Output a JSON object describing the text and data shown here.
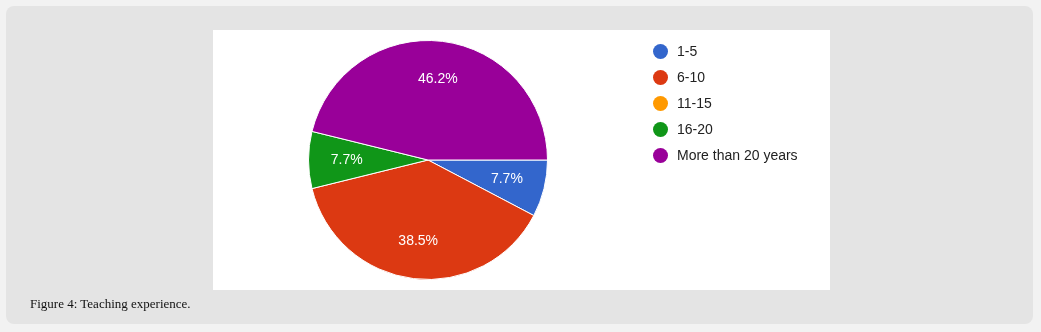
{
  "chart_data": {
    "type": "pie",
    "categories": [
      "1-5",
      "6-10",
      "11-15",
      "16-20",
      "More than 20 years"
    ],
    "values": [
      7.7,
      38.5,
      0,
      7.7,
      46.2
    ],
    "colors": [
      "#3366cc",
      "#dc3912",
      "#ff9900",
      "#109618",
      "#990099"
    ],
    "value_labels": [
      "7.7%",
      "38.5%",
      null,
      "7.7%",
      "46.2%"
    ],
    "legend": "top right",
    "annotations": [
      "Figure 4: Teaching experience."
    ]
  }
}
